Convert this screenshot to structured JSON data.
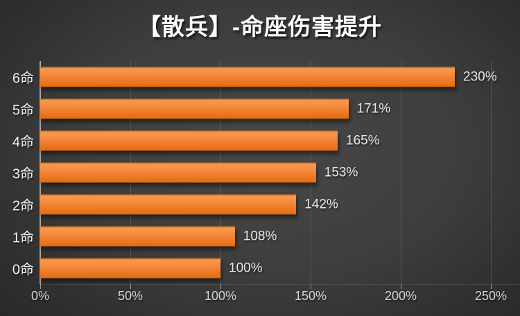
{
  "title": "【散兵】-命座伤害提升",
  "colors": {
    "bar_orange": "#ef7d28",
    "bar_gradient_top": "#f79a4e",
    "bar_gradient_bottom": "#e06a0d",
    "background_center": "#484848",
    "background_edge": "#232323",
    "axis_line": "#a8a8a8",
    "gridline": "#5a5a5a",
    "title_color": "#ffffff",
    "label_color": "#e8e8e8",
    "tick_label_color": "#d6d6d6"
  },
  "chart_data": {
    "type": "bar",
    "orientation": "horizontal",
    "title": "【散兵】-命座伤害提升",
    "categories": [
      "6命",
      "5命",
      "4命",
      "3命",
      "2命",
      "1命",
      "0命"
    ],
    "values": [
      230,
      171,
      165,
      153,
      142,
      108,
      100
    ],
    "value_labels": [
      "230%",
      "171%",
      "165%",
      "153%",
      "142%",
      "108%",
      "100%"
    ],
    "x_ticks": [
      "0%",
      "50%",
      "100%",
      "150%",
      "200%",
      "250%"
    ],
    "xlabel": "",
    "ylabel": "",
    "xlim": [
      0,
      250
    ],
    "grid": "vertical-gridlines-every-50",
    "legend": "none",
    "data_labels": "outside-end"
  }
}
